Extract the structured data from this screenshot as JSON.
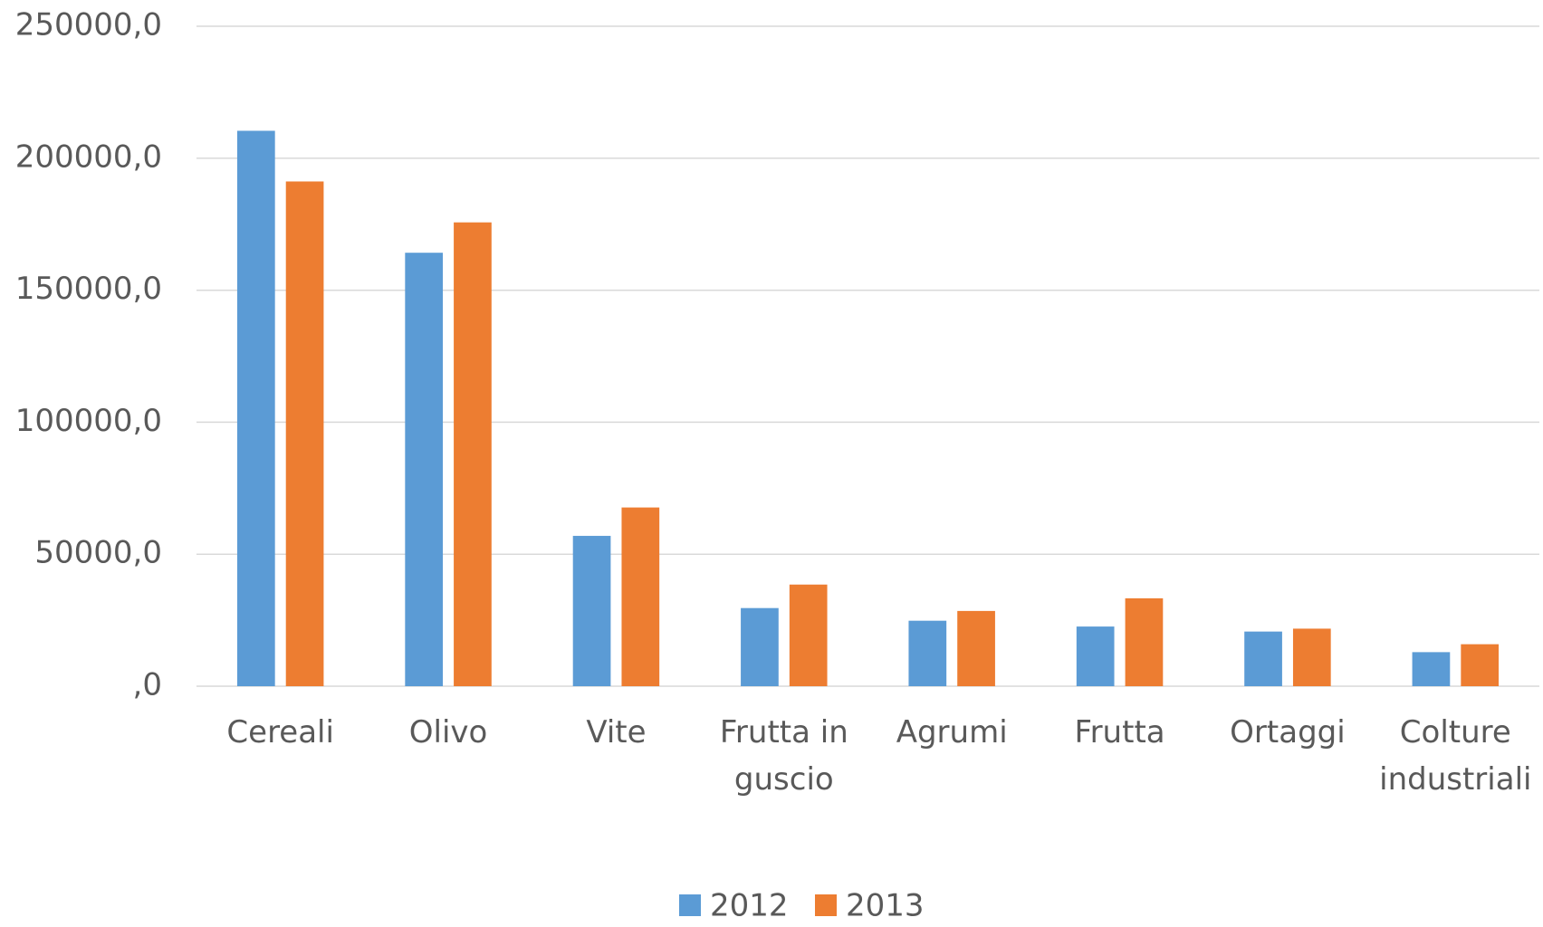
{
  "chart_data": {
    "type": "bar",
    "categories": [
      "Cereali",
      "Olivo",
      "Vite",
      "Frutta in guscio",
      "Agrumi",
      "Frutta",
      "Ortaggi",
      "Colture industriali"
    ],
    "series": [
      {
        "name": "2012",
        "color": "#5b9bd5",
        "values": [
          210400,
          164200,
          56950,
          29600,
          24800,
          22600,
          20700,
          12900
        ]
      },
      {
        "name": "2013",
        "color": "#ed7d31",
        "values": [
          191200,
          175700,
          67700,
          38500,
          28500,
          33300,
          21800,
          15900
        ]
      }
    ],
    "ylim": [
      0,
      250000
    ],
    "yticks": [
      {
        "value": 0,
        "label": ",0"
      },
      {
        "value": 50000,
        "label": "50000,0"
      },
      {
        "value": 100000,
        "label": "100000,0"
      },
      {
        "value": 150000,
        "label": "150000,0"
      },
      {
        "value": 200000,
        "label": "200000,0"
      },
      {
        "value": 250000,
        "label": "250000,0"
      }
    ],
    "grid": true,
    "legend": "bottom"
  }
}
